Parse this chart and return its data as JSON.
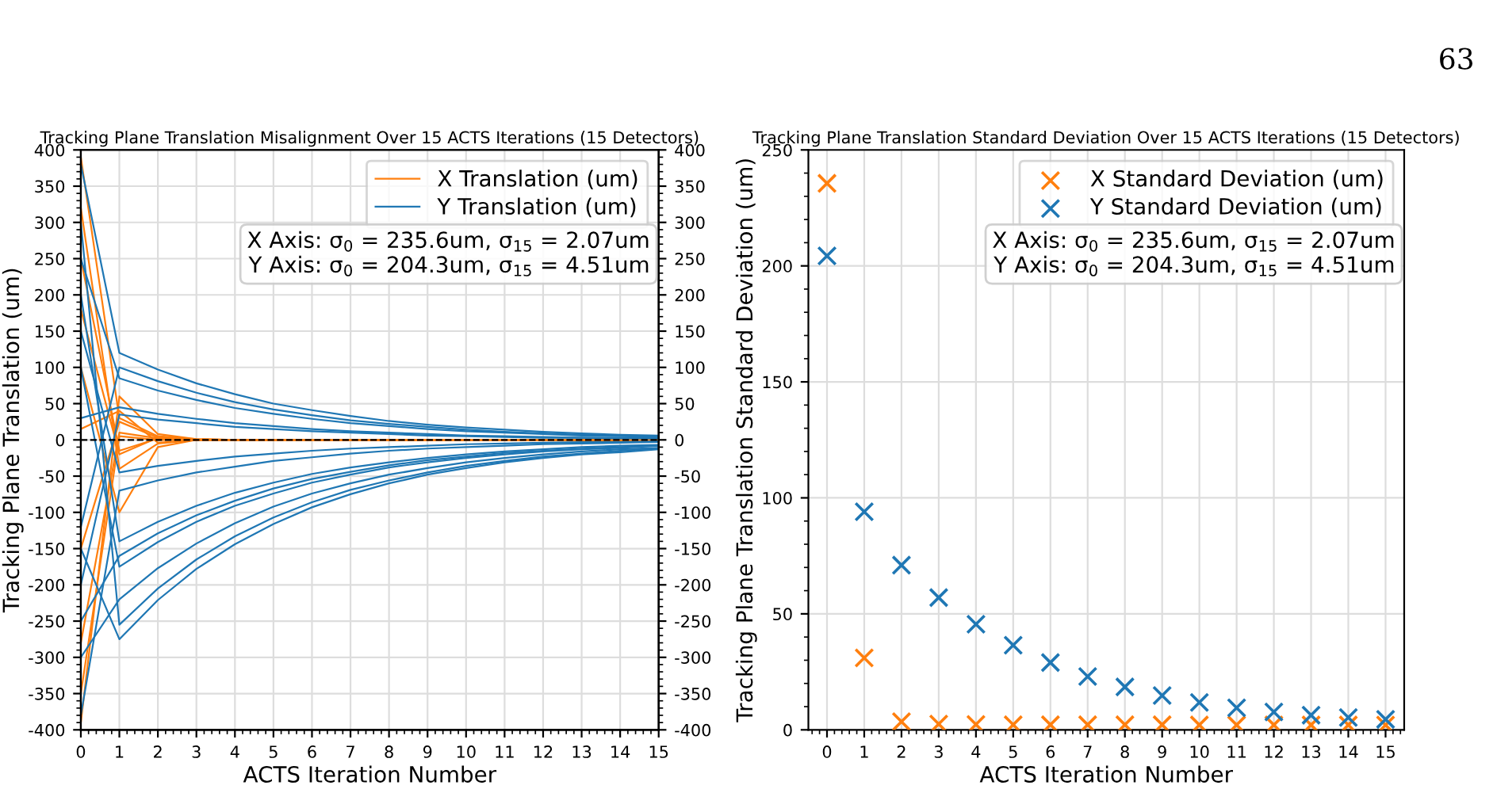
{
  "chart_data": [
    {
      "type": "line",
      "title": "Tracking Plane Translation Misalignment Over 15 ACTS Iterations (15 Detectors)",
      "xlabel": "ACTS Iteration Number",
      "ylabel": "Tracking Plane Translation (um)",
      "x": [
        0,
        1,
        2,
        3,
        4,
        5,
        6,
        7,
        8,
        9,
        10,
        11,
        12,
        13,
        14,
        15
      ],
      "xlim": [
        0,
        15
      ],
      "xticks": [
        0,
        1,
        2,
        3,
        4,
        5,
        6,
        7,
        8,
        9,
        10,
        11,
        12,
        13,
        14,
        15
      ],
      "ylim": [
        -400,
        400
      ],
      "yticks": [
        -400,
        -350,
        -300,
        -250,
        -200,
        -150,
        -100,
        -50,
        0,
        50,
        100,
        150,
        200,
        250,
        300,
        350,
        400
      ],
      "y2lim": [
        -400,
        400
      ],
      "y2ticks": [
        -400,
        -350,
        -300,
        -250,
        -200,
        -150,
        -100,
        -50,
        0,
        50,
        100,
        150,
        200,
        250,
        300,
        350,
        400
      ],
      "grid": true,
      "legend": "top right",
      "marker": "none",
      "line_style": "solid",
      "ref_lines": [
        {
          "axis": "y",
          "value": 0,
          "color": "#000000",
          "line_style": "dashed"
        }
      ],
      "annotations": [
        "X Axis: σ$_{0}$ = 235.6um, σ$_{15}$ = 2.07um\nY Axis: σ$_{0}$ = 204.3um, σ$_{15}$ = 4.51um"
      ],
      "series": [
        {
          "name": "X Translation (um)",
          "color": "#ff7f0e",
          "values": [
            390,
            30,
            5,
            1,
            0,
            0,
            0,
            0,
            0,
            0,
            0,
            0,
            0,
            0,
            0,
            0
          ]
        },
        {
          "color": "#ff7f0e",
          "values": [
            180,
            -20,
            3,
            0,
            0,
            0,
            0,
            0,
            0,
            0,
            0,
            0,
            0,
            0,
            0,
            0
          ]
        },
        {
          "color": "#ff7f0e",
          "values": [
            -390,
            60,
            8,
            1,
            0,
            0,
            0,
            0,
            0,
            0,
            0,
            0,
            0,
            0,
            0,
            0
          ]
        },
        {
          "color": "#ff7f0e",
          "values": [
            320,
            -40,
            -5,
            0,
            0,
            0,
            0,
            0,
            0,
            0,
            0,
            0,
            0,
            0,
            0,
            0
          ]
        },
        {
          "color": "#ff7f0e",
          "values": [
            -280,
            10,
            2,
            0,
            0,
            0,
            0,
            0,
            0,
            0,
            0,
            0,
            0,
            0,
            0,
            0
          ]
        },
        {
          "color": "#ff7f0e",
          "values": [
            100,
            -100,
            -10,
            0,
            0,
            0,
            0,
            0,
            0,
            0,
            0,
            0,
            0,
            0,
            0,
            0
          ]
        },
        {
          "color": "#ff7f0e",
          "values": [
            -150,
            25,
            3,
            0,
            0,
            0,
            0,
            0,
            0,
            0,
            0,
            0,
            0,
            0,
            0,
            0
          ]
        },
        {
          "color": "#ff7f0e",
          "values": [
            250,
            -15,
            2,
            0,
            0,
            0,
            0,
            0,
            0,
            0,
            0,
            0,
            0,
            0,
            0,
            0
          ]
        },
        {
          "color": "#ff7f0e",
          "values": [
            -350,
            5,
            0,
            0,
            0,
            0,
            0,
            0,
            0,
            0,
            0,
            0,
            0,
            0,
            0,
            0
          ]
        },
        {
          "color": "#ff7f0e",
          "values": [
            15,
            40,
            -4,
            0,
            0,
            0,
            0,
            0,
            0,
            0,
            0,
            0,
            0,
            0,
            0,
            0
          ]
        },
        {
          "name": "Y Translation (um)",
          "color": "#1f77b4",
          "values": [
            380,
            120,
            97,
            78,
            63,
            50,
            41,
            33,
            26,
            21,
            17,
            14,
            11,
            9,
            7,
            6
          ]
        },
        {
          "color": "#1f77b4",
          "values": [
            -120,
            100,
            81,
            65,
            52,
            42,
            34,
            27,
            22,
            18,
            14,
            11,
            9,
            7,
            6,
            5
          ]
        },
        {
          "color": "#1f77b4",
          "values": [
            250,
            85,
            68,
            55,
            44,
            36,
            29,
            23,
            19,
            15,
            12,
            10,
            8,
            6,
            5,
            4
          ]
        },
        {
          "color": "#1f77b4",
          "values": [
            30,
            45,
            36,
            29,
            23,
            19,
            15,
            12,
            10,
            8,
            6,
            5,
            4,
            3,
            3,
            2
          ]
        },
        {
          "color": "#1f77b4",
          "values": [
            -200,
            35,
            28,
            23,
            18,
            15,
            12,
            10,
            8,
            6,
            5,
            4,
            3,
            3,
            2,
            2
          ]
        },
        {
          "color": "#1f77b4",
          "values": [
            150,
            -45,
            -36,
            -29,
            -23,
            -19,
            -15,
            -12,
            -10,
            -8,
            -6,
            -5,
            -4,
            -3,
            -3,
            -2
          ]
        },
        {
          "color": "#1f77b4",
          "values": [
            -380,
            -70,
            -56,
            -45,
            -37,
            -29,
            -24,
            -19,
            -15,
            -12,
            -10,
            -8,
            -6,
            -5,
            -4,
            -3
          ]
        },
        {
          "color": "#1f77b4",
          "values": [
            200,
            -140,
            -113,
            -91,
            -73,
            -59,
            -47,
            -38,
            -31,
            -25,
            -20,
            -16,
            -13,
            -10,
            -8,
            -7
          ]
        },
        {
          "color": "#1f77b4",
          "values": [
            -250,
            -160,
            -129,
            -104,
            -84,
            -67,
            -54,
            -44,
            -35,
            -28,
            -23,
            -18,
            -15,
            -12,
            -10,
            -8
          ]
        },
        {
          "color": "#1f77b4",
          "values": [
            100,
            -175,
            -141,
            -113,
            -91,
            -74,
            -59,
            -48,
            -38,
            -31,
            -25,
            -20,
            -16,
            -13,
            -11,
            -8
          ]
        },
        {
          "color": "#1f77b4",
          "values": [
            -300,
            -220,
            -177,
            -143,
            -115,
            -92,
            -74,
            -60,
            -48,
            -39,
            -31,
            -25,
            -20,
            -16,
            -13,
            -11
          ]
        },
        {
          "color": "#1f77b4",
          "values": [
            300,
            -255,
            -205,
            -165,
            -133,
            -107,
            -86,
            -69,
            -56,
            -45,
            -36,
            -29,
            -23,
            -19,
            -15,
            -12
          ]
        },
        {
          "color": "#1f77b4",
          "values": [
            -150,
            -275,
            -221,
            -178,
            -144,
            -116,
            -93,
            -75,
            -60,
            -48,
            -39,
            -31,
            -25,
            -20,
            -17,
            -13
          ]
        }
      ]
    },
    {
      "type": "scatter",
      "title": "Tracking Plane Translation Standard Deviation Over 15 ACTS Iterations (15 Detectors)",
      "xlabel": "ACTS Iteration Number",
      "ylabel": "Tracking Plane Translation Standard Deviation (um)",
      "x": [
        0,
        1,
        2,
        3,
        4,
        5,
        6,
        7,
        8,
        9,
        10,
        11,
        12,
        13,
        14,
        15
      ],
      "xlim": [
        -0.5,
        15.5
      ],
      "xticks": [
        0,
        1,
        2,
        3,
        4,
        5,
        6,
        7,
        8,
        9,
        10,
        11,
        12,
        13,
        14,
        15
      ],
      "ylim": [
        0,
        250
      ],
      "yticks": [
        0,
        50,
        100,
        150,
        200,
        250
      ],
      "grid": true,
      "legend": "top right",
      "marker": "cross",
      "annotations": [
        "X Axis: σ$_{0}$ = 235.6um, σ$_{15}$ = 2.07um\nY Axis: σ$_{0}$ = 204.3um, σ$_{15}$ = 4.51um",
        "63"
      ],
      "series": [
        {
          "name": "X Standard Deviation (um)",
          "color": "#ff7f0e",
          "values": [
            235.6,
            31,
            3.5,
            2.5,
            2.3,
            2.2,
            2.2,
            2.2,
            2.2,
            2.2,
            2.1,
            2.1,
            2.1,
            2.1,
            2.1,
            2.07
          ]
        },
        {
          "name": "Y Standard Deviation (um)",
          "color": "#1f77b4",
          "values": [
            204.3,
            94,
            71,
            57,
            45.5,
            36.5,
            29,
            23,
            18.5,
            14.8,
            11.8,
            9.5,
            7.7,
            6.3,
            5.3,
            4.51
          ]
        }
      ]
    }
  ]
}
